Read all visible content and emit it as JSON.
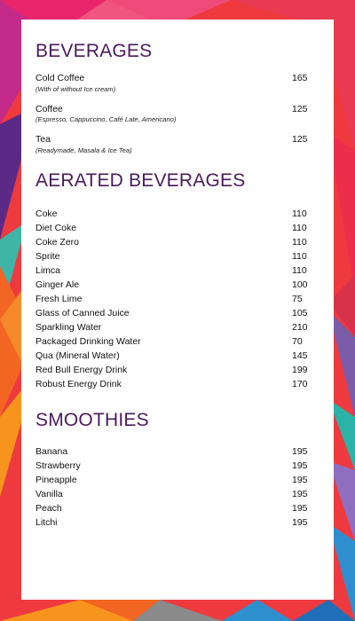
{
  "colors": {
    "title": "#4a1a5c",
    "card": "#ffffff",
    "border_palette": [
      "#e8256b",
      "#ee3a3f",
      "#f26522",
      "#f7941d",
      "#7b3f9e",
      "#5b2a86",
      "#3fb5a8",
      "#2e8fcf",
      "#8e6fbf",
      "#2ab3a6"
    ]
  },
  "sections": {
    "beverages": {
      "title": "BEVERAGES",
      "items": [
        {
          "name": "Cold Coffee",
          "desc": "(With of without Ice cream)",
          "price": "165"
        },
        {
          "name": "Coffee",
          "desc": "(Espresso, Cappuccino, Café Late, Americano)",
          "price": "125"
        },
        {
          "name": "Tea",
          "desc": "(Readymade, Masala & Ice Tea)",
          "price": "125"
        }
      ]
    },
    "aerated": {
      "title": "AERATED BEVERAGES",
      "items": [
        {
          "name": "Coke",
          "price": "110"
        },
        {
          "name": "Diet Coke",
          "price": "110"
        },
        {
          "name": "Coke Zero",
          "price": "110"
        },
        {
          "name": "Sprite",
          "price": "110"
        },
        {
          "name": "Limca",
          "price": "110"
        },
        {
          "name": "Ginger Ale",
          "price": "100"
        },
        {
          "name": "Fresh Lime",
          "price": "75"
        },
        {
          "name": "Glass of Canned Juice",
          "price": "105"
        },
        {
          "name": "Sparkling Water",
          "price": "210"
        },
        {
          "name": "Packaged Drinking Water",
          "price": "70"
        },
        {
          "name": "Qua (Mineral Water)",
          "price": "145"
        },
        {
          "name": "Red Bull Energy Drink",
          "price": "199"
        },
        {
          "name": "Robust Energy Drink",
          "price": "170"
        }
      ]
    },
    "smoothies": {
      "title": "SMOOTHIES",
      "items": [
        {
          "name": "Banana",
          "price": "195"
        },
        {
          "name": "Strawberry",
          "price": "195"
        },
        {
          "name": "Pineapple",
          "price": "195"
        },
        {
          "name": "Vanilla",
          "price": "195"
        },
        {
          "name": "Peach",
          "price": "195"
        },
        {
          "name": "Litchi",
          "price": "195"
        }
      ]
    }
  }
}
